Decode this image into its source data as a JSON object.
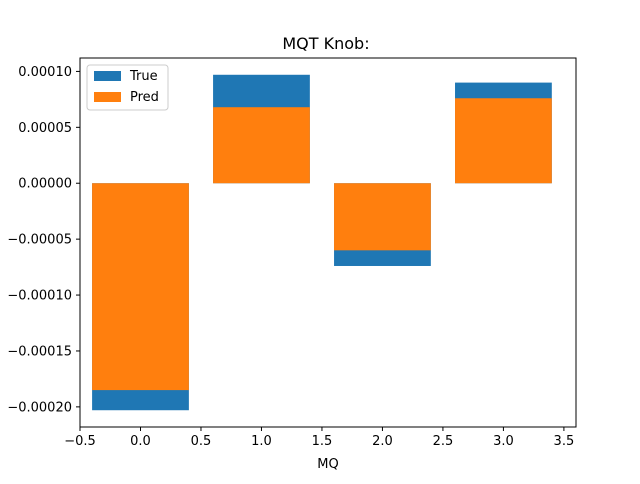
{
  "chart_data": {
    "type": "bar",
    "title": "MQT Knob:",
    "xlabel": "MQ",
    "ylabel": "",
    "x": [
      0,
      1,
      2,
      3
    ],
    "bar_width": 0.8,
    "xlim": [
      -0.5,
      3.6
    ],
    "ylim": [
      -0.000218,
      0.000112
    ],
    "x_ticks": [
      -0.5,
      0.0,
      0.5,
      1.0,
      1.5,
      2.0,
      2.5,
      3.0,
      3.5
    ],
    "x_tick_labels": [
      "−0.5",
      "0.0",
      "0.5",
      "1.0",
      "1.5",
      "2.0",
      "2.5",
      "3.0",
      "3.5"
    ],
    "y_ticks": [
      0.0001,
      5e-05,
      0.0,
      -5e-05,
      -0.0001,
      -0.00015,
      -0.0002
    ],
    "y_tick_labels": [
      "0.00010",
      "0.00005",
      "0.00000",
      "−0.00005",
      "−0.00010",
      "−0.00015",
      "−0.00020"
    ],
    "grid": false,
    "legend_position": "top-left",
    "series": [
      {
        "name": "True",
        "color": "#1f77b4",
        "values": [
          -0.000203,
          9.7e-05,
          -7.4e-05,
          9e-05
        ]
      },
      {
        "name": "Pred",
        "color": "#ff7f0e",
        "values": [
          -0.000185,
          6.8e-05,
          -6e-05,
          7.6e-05
        ]
      }
    ]
  }
}
